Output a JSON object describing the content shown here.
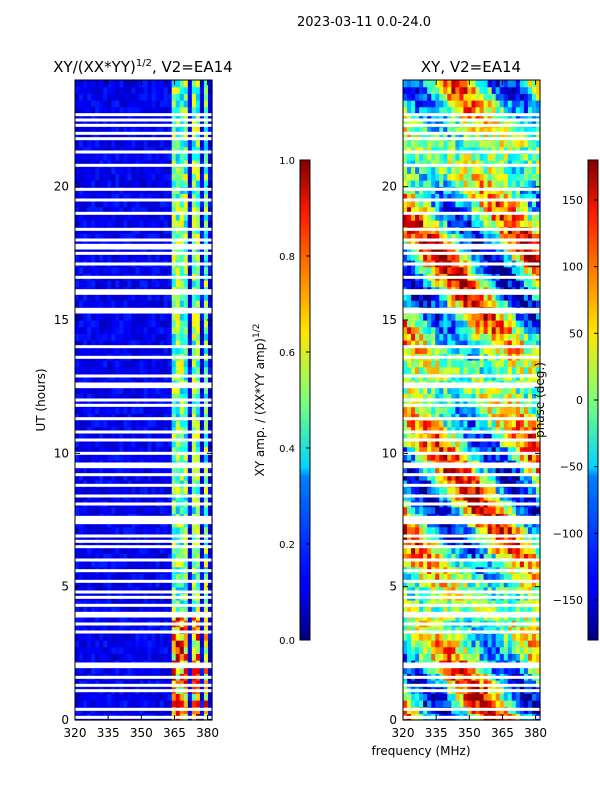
{
  "suptitle": "2023-03-11 0.0-24.0",
  "shared_xlabel": "frequency (MHz)",
  "chart_data": [
    {
      "type": "heatmap",
      "title": "XY/(XX*YY)",
      "title_superscript": "1/2",
      "title_suffix": ", V2=EA14",
      "xlabel": "",
      "ylabel": "UT (hours)",
      "xlim": [
        320,
        382
      ],
      "ylim": [
        0,
        24
      ],
      "xticks": [
        320,
        335,
        350,
        365,
        380
      ],
      "yticks": [
        0,
        5,
        10,
        15,
        20
      ],
      "colorbar": {
        "label": "XY amp. / (XX*YY amp)",
        "label_superscript": "1/2",
        "range": [
          0.0,
          1.0
        ],
        "ticks": [
          "0.0",
          "0.2",
          "0.4",
          "0.6",
          "0.8",
          "1.0"
        ],
        "colormap": "jet"
      },
      "masked_time_bands_hours": [
        0.1,
        0.4,
        1.1,
        1.3,
        1.6,
        2.0,
        2.1,
        3.3,
        3.6,
        3.9,
        4.0,
        4.3,
        4.6,
        4.8,
        5.2,
        5.6,
        6.0,
        6.5,
        6.7,
        6.9,
        7.4,
        7.5,
        7.6,
        8.1,
        8.4,
        8.8,
        9.2,
        9.5,
        9.6,
        10.0,
        10.5,
        10.8,
        11.3,
        11.8,
        12.0,
        12.5,
        12.6,
        12.9,
        13.6,
        14.0,
        15.3,
        15.4,
        16.0,
        16.1,
        16.6,
        17.1,
        17.5,
        17.7,
        17.8,
        18.0,
        18.4,
        19.0,
        19.5,
        19.9,
        20.8,
        21.3,
        21.8,
        22.0,
        22.3,
        22.5,
        22.7
      ],
      "bright_frequency_ranges_mhz": [
        [
          363,
          367
        ],
        [
          368,
          371
        ],
        [
          372,
          377
        ],
        [
          378,
          380
        ]
      ]
    },
    {
      "type": "heatmap",
      "title": "XY, V2=EA14",
      "xlabel": "frequency (MHz)",
      "ylabel": "",
      "xlim": [
        320,
        382
      ],
      "ylim": [
        0,
        24
      ],
      "xticks": [
        320,
        335,
        350,
        365,
        380
      ],
      "yticks": [
        0,
        5,
        10,
        15,
        20
      ],
      "colorbar": {
        "label": "phase (deg.)",
        "range": [
          -180,
          180
        ],
        "ticks": [
          "−150",
          "−100",
          "−50",
          "0",
          "50",
          "100",
          "150"
        ],
        "colormap": "jet"
      },
      "masked_time_bands_hours": [
        0.1,
        0.4,
        1.1,
        1.3,
        1.6,
        2.0,
        2.1,
        3.3,
        3.6,
        3.9,
        4.0,
        4.3,
        4.6,
        4.8,
        5.2,
        5.6,
        6.0,
        6.5,
        6.7,
        6.9,
        7.4,
        7.5,
        7.6,
        8.1,
        8.4,
        8.8,
        9.2,
        9.5,
        9.6,
        10.0,
        10.5,
        10.8,
        11.3,
        11.8,
        12.0,
        12.5,
        12.6,
        12.9,
        13.6,
        14.0,
        15.3,
        15.4,
        16.0,
        16.1,
        16.6,
        17.1,
        17.5,
        17.7,
        17.8,
        18.0,
        18.4,
        19.0,
        19.5,
        19.9,
        20.8,
        21.3,
        21.8,
        22.0,
        22.3,
        22.5,
        22.7
      ]
    }
  ]
}
